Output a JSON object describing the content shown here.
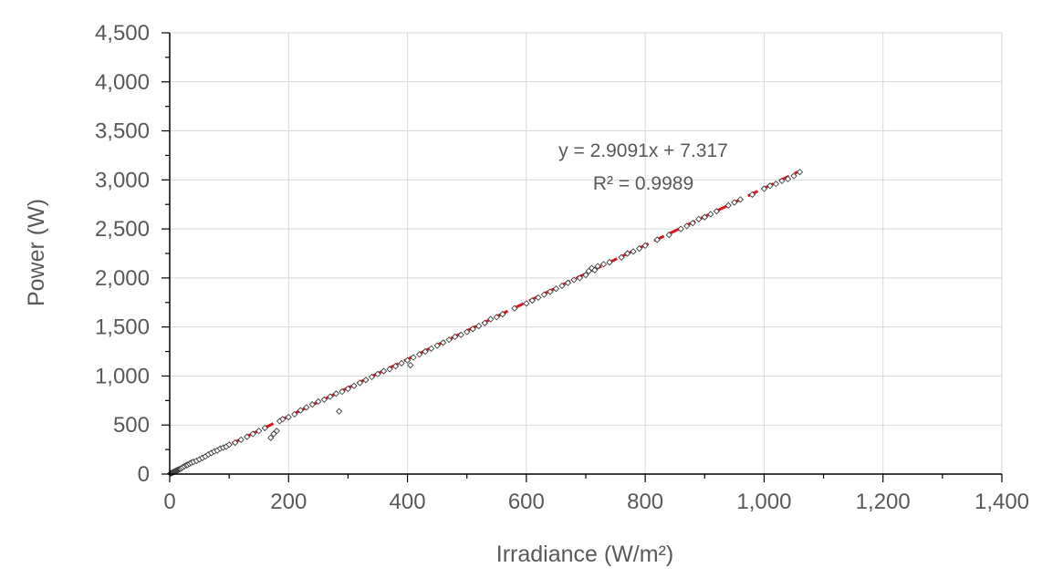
{
  "chart_data": {
    "type": "scatter",
    "xlabel": "Irradiance (W/m²)",
    "ylabel": "Power (W)",
    "xlim": [
      0,
      1400
    ],
    "ylim": [
      0,
      4500
    ],
    "x_ticks": [
      0,
      200,
      400,
      600,
      800,
      1000,
      1200,
      1400
    ],
    "y_ticks": [
      0,
      500,
      1000,
      1500,
      2000,
      2500,
      3000,
      3500,
      4000,
      4500
    ],
    "x_tick_labels": [
      "0",
      "200",
      "400",
      "600",
      "800",
      "1,000",
      "1,200",
      "1,400"
    ],
    "y_tick_labels": [
      "0",
      "500",
      "1,000",
      "1,500",
      "2,000",
      "2,500",
      "3,000",
      "3,500",
      "4,000",
      "4,500"
    ],
    "grid": true,
    "legend": "none",
    "trendline": {
      "style": "dashed",
      "color": "#e0141e",
      "slope": 2.9091,
      "intercept": 7.317,
      "x_range": [
        0,
        1062
      ],
      "equation_text": "y = 2.9091x + 7.317",
      "r2_text": "R² = 0.9989"
    },
    "series": [
      {
        "marker": "diamond-open",
        "color": "#404040",
        "points": [
          [
            1,
            5
          ],
          [
            2,
            8
          ],
          [
            3,
            10
          ],
          [
            4,
            12
          ],
          [
            5,
            15
          ],
          [
            6,
            20
          ],
          [
            7,
            22
          ],
          [
            8,
            25
          ],
          [
            9,
            28
          ],
          [
            10,
            30
          ],
          [
            11,
            35
          ],
          [
            12,
            38
          ],
          [
            13,
            40
          ],
          [
            14,
            42
          ],
          [
            15,
            45
          ],
          [
            16,
            48
          ],
          [
            17,
            50
          ],
          [
            18,
            55
          ],
          [
            20,
            60
          ],
          [
            22,
            70
          ],
          [
            25,
            80
          ],
          [
            28,
            90
          ],
          [
            30,
            95
          ],
          [
            33,
            105
          ],
          [
            36,
            115
          ],
          [
            40,
            125
          ],
          [
            45,
            135
          ],
          [
            50,
            150
          ],
          [
            55,
            165
          ],
          [
            60,
            180
          ],
          [
            65,
            200
          ],
          [
            70,
            215
          ],
          [
            75,
            230
          ],
          [
            80,
            240
          ],
          [
            85,
            260
          ],
          [
            90,
            270
          ],
          [
            95,
            280
          ],
          [
            100,
            300
          ],
          [
            110,
            320
          ],
          [
            120,
            350
          ],
          [
            130,
            380
          ],
          [
            140,
            410
          ],
          [
            150,
            440
          ],
          [
            160,
            470
          ],
          [
            170,
            370
          ],
          [
            175,
            410
          ],
          [
            180,
            440
          ],
          [
            185,
            540
          ],
          [
            190,
            560
          ],
          [
            200,
            580
          ],
          [
            210,
            610
          ],
          [
            220,
            650
          ],
          [
            230,
            680
          ],
          [
            240,
            710
          ],
          [
            250,
            740
          ],
          [
            260,
            760
          ],
          [
            270,
            790
          ],
          [
            280,
            820
          ],
          [
            285,
            640
          ],
          [
            290,
            840
          ],
          [
            300,
            870
          ],
          [
            310,
            900
          ],
          [
            320,
            930
          ],
          [
            330,
            960
          ],
          [
            340,
            990
          ],
          [
            350,
            1020
          ],
          [
            360,
            1050
          ],
          [
            370,
            1070
          ],
          [
            380,
            1100
          ],
          [
            390,
            1130
          ],
          [
            400,
            1160
          ],
          [
            405,
            1110
          ],
          [
            410,
            1190
          ],
          [
            420,
            1220
          ],
          [
            430,
            1250
          ],
          [
            440,
            1280
          ],
          [
            450,
            1310
          ],
          [
            460,
            1340
          ],
          [
            470,
            1370
          ],
          [
            480,
            1400
          ],
          [
            490,
            1420
          ],
          [
            500,
            1450
          ],
          [
            510,
            1480
          ],
          [
            520,
            1510
          ],
          [
            530,
            1540
          ],
          [
            540,
            1580
          ],
          [
            550,
            1600
          ],
          [
            560,
            1630
          ],
          [
            580,
            1690
          ],
          [
            600,
            1740
          ],
          [
            610,
            1770
          ],
          [
            620,
            1800
          ],
          [
            630,
            1830
          ],
          [
            640,
            1860
          ],
          [
            650,
            1890
          ],
          [
            660,
            1920
          ],
          [
            670,
            1950
          ],
          [
            680,
            1980
          ],
          [
            690,
            2000
          ],
          [
            700,
            2030
          ],
          [
            705,
            2070
          ],
          [
            710,
            2100
          ],
          [
            715,
            2080
          ],
          [
            720,
            2120
          ],
          [
            730,
            2140
          ],
          [
            740,
            2160
          ],
          [
            760,
            2210
          ],
          [
            770,
            2250
          ],
          [
            780,
            2270
          ],
          [
            790,
            2300
          ],
          [
            800,
            2330
          ],
          [
            820,
            2390
          ],
          [
            840,
            2440
          ],
          [
            860,
            2500
          ],
          [
            870,
            2530
          ],
          [
            880,
            2560
          ],
          [
            890,
            2600
          ],
          [
            900,
            2620
          ],
          [
            910,
            2650
          ],
          [
            920,
            2680
          ],
          [
            940,
            2740
          ],
          [
            950,
            2770
          ],
          [
            960,
            2800
          ],
          [
            980,
            2850
          ],
          [
            1000,
            2910
          ],
          [
            1010,
            2940
          ],
          [
            1020,
            2960
          ],
          [
            1030,
            2990
          ],
          [
            1040,
            3010
          ],
          [
            1050,
            3040
          ],
          [
            1060,
            3080
          ]
        ]
      }
    ]
  }
}
